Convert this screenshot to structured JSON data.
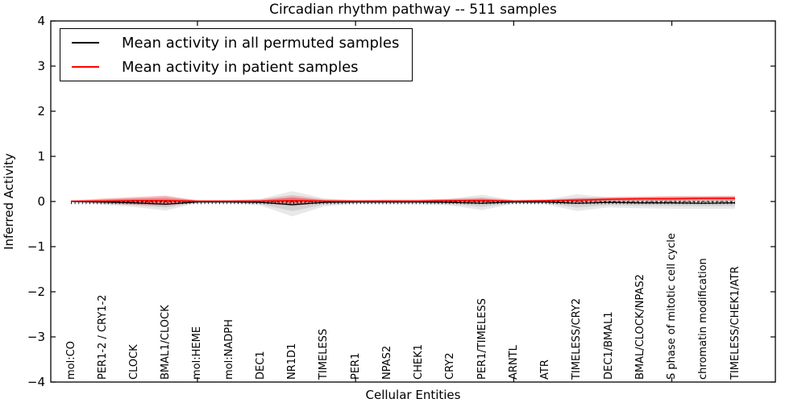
{
  "title": "Circadian rhythm pathway -- 511 samples",
  "colors": {
    "permuted_line": "#000000",
    "patient_line": "#ff0000",
    "permuted_band": "rgba(0,0,0,0.09)",
    "patient_band_outer": "rgba(255,0,0,0.20)",
    "patient_band_inner": "rgba(255,0,0,0.28)",
    "axis": "#000000",
    "background": "#ffffff"
  },
  "chart_data": {
    "type": "line",
    "title": "Circadian rhythm pathway -- 511 samples",
    "xlabel": "Cellular Entities",
    "ylabel": "Inferred Activity",
    "ylim": [
      -4,
      4
    ],
    "yticks": [
      4,
      3,
      2,
      1,
      0,
      -1,
      -2,
      -3,
      -4
    ],
    "ytick_labels": [
      "4",
      "3",
      "2",
      "1",
      "0",
      "−1",
      "−2",
      "−3",
      "−4"
    ],
    "xtick_values": [
      5,
      10,
      15,
      20
    ],
    "grid": false,
    "legend_position": "upper left",
    "baseline": {
      "value": 0,
      "style": "dashed"
    },
    "categories": [
      "mol:CO",
      "PER1-2 / CRY1-2",
      "CLOCK",
      "BMAL1/CLOCK",
      "mol:HEME",
      "mol:NADPH",
      "DEC1",
      "NR1D1",
      "TIMELESS",
      "PER1",
      "NPAS2",
      "CHEK1",
      "CRY2",
      "PER1/TIMELESS",
      "ARNTL",
      "ATR",
      "TIMELESS/CRY2",
      "DEC1/BMAL1",
      "BMAL/CLOCK/NPAS2",
      "S phase of mitotic cell cycle",
      "chromatin modification",
      "TIMELESS/CHEK1/ATR"
    ],
    "series": [
      {
        "name": "Mean activity in all permuted samples",
        "color": "#000000",
        "values": [
          0.0,
          -0.01,
          -0.03,
          -0.06,
          -0.01,
          -0.01,
          -0.02,
          -0.07,
          -0.02,
          -0.01,
          -0.01,
          -0.01,
          -0.02,
          -0.04,
          -0.01,
          -0.01,
          -0.04,
          -0.02,
          -0.03,
          -0.03,
          -0.04,
          -0.03
        ],
        "band_upper": [
          0.01,
          0.05,
          0.08,
          0.12,
          0.02,
          0.02,
          0.06,
          0.23,
          0.07,
          0.03,
          0.04,
          0.04,
          0.06,
          0.15,
          0.03,
          0.04,
          0.16,
          0.09,
          0.1,
          0.11,
          0.11,
          0.11
        ],
        "band_lower": [
          -0.01,
          -0.07,
          -0.12,
          -0.2,
          -0.03,
          -0.03,
          -0.09,
          -0.33,
          -0.11,
          -0.05,
          -0.06,
          -0.06,
          -0.09,
          -0.19,
          -0.05,
          -0.06,
          -0.21,
          -0.13,
          -0.15,
          -0.16,
          -0.16,
          -0.16
        ]
      },
      {
        "name": "Mean activity in patient samples",
        "color": "#ff0000",
        "values": [
          0.01,
          0.01,
          0.02,
          0.02,
          0.01,
          0.01,
          0.01,
          0.02,
          0.01,
          0.01,
          0.01,
          0.01,
          0.02,
          0.02,
          0.01,
          0.02,
          0.03,
          0.05,
          0.06,
          0.06,
          0.07,
          0.07
        ],
        "band_upper": [
          0.02,
          0.07,
          0.1,
          0.13,
          0.03,
          0.03,
          0.05,
          0.14,
          0.05,
          0.03,
          0.04,
          0.04,
          0.06,
          0.09,
          0.03,
          0.04,
          0.08,
          0.1,
          0.11,
          0.12,
          0.12,
          0.13
        ],
        "band_lower": [
          0.0,
          -0.05,
          -0.07,
          -0.1,
          -0.01,
          -0.01,
          -0.03,
          -0.1,
          -0.03,
          -0.01,
          -0.02,
          -0.02,
          -0.03,
          -0.04,
          -0.01,
          0.0,
          -0.02,
          0.0,
          0.01,
          0.01,
          0.02,
          0.02
        ]
      }
    ]
  }
}
